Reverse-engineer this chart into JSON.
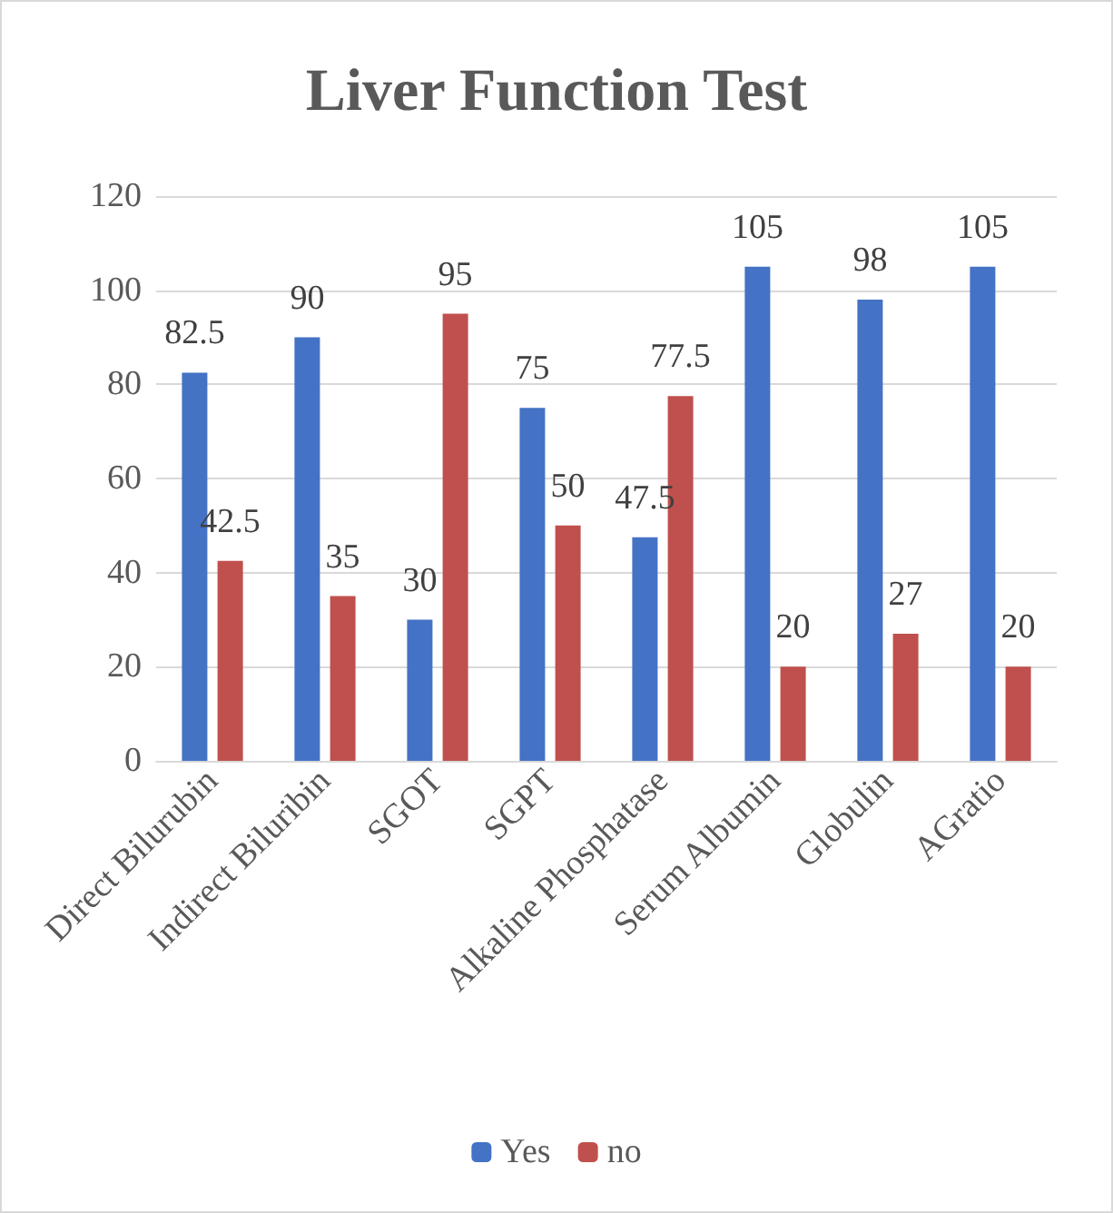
{
  "chart_data": {
    "type": "bar",
    "title": "Liver Function Test",
    "categories": [
      "Direct Bilurubin",
      "Indirect Biluribin",
      "SGOT",
      "SGPT",
      "Alkaline Phosphatase",
      "Serum Albumin",
      "Globulin",
      "AGratio"
    ],
    "series": [
      {
        "name": "Yes",
        "color": "#4472c4",
        "values": [
          82.5,
          90,
          30,
          75,
          47.5,
          105,
          98,
          105
        ]
      },
      {
        "name": "no",
        "color": "#c0504d",
        "values": [
          42.5,
          35,
          95,
          50,
          77.5,
          20,
          27,
          20
        ]
      }
    ],
    "ylim": [
      0,
      120
    ],
    "yticks": [
      0,
      20,
      40,
      60,
      80,
      100,
      120
    ],
    "grid": "y",
    "legend": "bottom",
    "data_labels": true
  }
}
